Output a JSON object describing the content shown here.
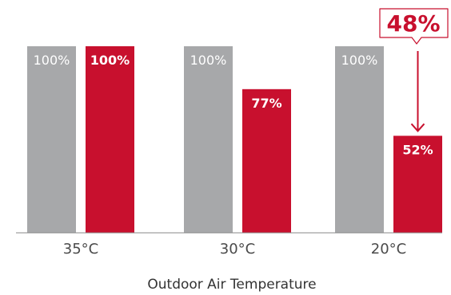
{
  "chart_data": {
    "type": "bar",
    "categories": [
      "35°C",
      "30°C",
      "20°C"
    ],
    "series": [
      {
        "values": [
          100,
          100,
          100
        ],
        "labels": [
          "100%",
          "100%",
          "100%"
        ],
        "color": "#a7a8aa"
      },
      {
        "values": [
          100,
          77,
          52
        ],
        "labels": [
          "100%",
          "77%",
          "52%"
        ],
        "color": "#c8102e"
      }
    ],
    "xlabel": "Outdoor Air Temperature",
    "ylabel": "",
    "ylim": [
      0,
      100
    ],
    "grid": false,
    "legend": "none",
    "annotations": [
      {
        "text": "48%",
        "category": "20°C",
        "from": 100,
        "to": 52,
        "color": "#c8102e"
      }
    ]
  }
}
